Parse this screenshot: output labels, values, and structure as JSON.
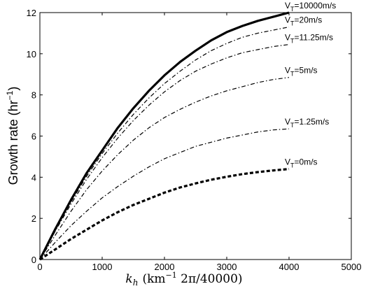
{
  "chart_data": {
    "type": "line",
    "title": "",
    "xlabel_var": "k",
    "xlabel_sub": "h",
    "xlabel_units": "(km",
    "xlabel_exp": "−1",
    "xlabel_rest": " 2π/40000)",
    "ylabel": "Growth rate (hr",
    "ylabel_exp": "−1",
    "ylabel_close": ")",
    "xlim": [
      0,
      5000
    ],
    "ylim": [
      0,
      12
    ],
    "xticks": [
      "0",
      "1000",
      "2000",
      "3000",
      "4000",
      "5000"
    ],
    "yticks": [
      "0",
      "2",
      "4",
      "6",
      "8",
      "10",
      "12"
    ],
    "grid": false,
    "series": [
      {
        "name": "V_T=10000m/s",
        "label_main": "V",
        "label_sub": "T",
        "label_tail": "=10000m/s",
        "style": "solid-thick",
        "x": [
          0,
          250,
          500,
          750,
          1000,
          1250,
          1500,
          1750,
          2000,
          2250,
          2500,
          2750,
          3000,
          3250,
          3500,
          3750,
          4000
        ],
        "y": [
          0,
          1.5,
          2.9,
          4.2,
          5.3,
          6.4,
          7.35,
          8.2,
          8.95,
          9.6,
          10.15,
          10.65,
          11.05,
          11.35,
          11.6,
          11.8,
          12.0
        ]
      },
      {
        "name": "V_T=20m/s",
        "label_main": "V",
        "label_sub": "T",
        "label_tail": "=20m/s",
        "style": "dashdot",
        "x": [
          0,
          250,
          500,
          750,
          1000,
          1250,
          1500,
          1750,
          2000,
          2250,
          2500,
          2750,
          3000,
          3250,
          3500,
          3750,
          4000
        ],
        "y": [
          0,
          1.45,
          2.8,
          4.05,
          5.15,
          6.15,
          7.05,
          7.85,
          8.55,
          9.15,
          9.7,
          10.15,
          10.5,
          10.8,
          11.0,
          11.15,
          11.3
        ]
      },
      {
        "name": "V_T=11.25m/s",
        "label_main": "V",
        "label_sub": "T",
        "label_tail": "=11.25m/s",
        "style": "dashdot",
        "x": [
          0,
          250,
          500,
          750,
          1000,
          1250,
          1500,
          1750,
          2000,
          2250,
          2500,
          2750,
          3000,
          3250,
          3500,
          3750,
          4000
        ],
        "y": [
          0,
          1.4,
          2.7,
          3.9,
          4.95,
          5.9,
          6.75,
          7.5,
          8.15,
          8.7,
          9.15,
          9.5,
          9.8,
          10.05,
          10.2,
          10.35,
          10.45
        ]
      },
      {
        "name": "V_T=5m/s",
        "label_main": "V",
        "label_sub": "T",
        "label_tail": "=5m/s",
        "style": "dashdot",
        "x": [
          0,
          250,
          500,
          750,
          1000,
          1250,
          1500,
          1750,
          2000,
          2250,
          2500,
          2750,
          3000,
          3250,
          3500,
          3750,
          4000
        ],
        "y": [
          0,
          1.2,
          2.35,
          3.4,
          4.3,
          5.1,
          5.8,
          6.4,
          6.9,
          7.3,
          7.65,
          7.95,
          8.2,
          8.4,
          8.6,
          8.75,
          8.85
        ]
      },
      {
        "name": "V_T=1.25m/s",
        "label_main": "V",
        "label_sub": "T",
        "label_tail": "=1.25m/s",
        "style": "dashdot",
        "x": [
          0,
          250,
          500,
          750,
          1000,
          1250,
          1500,
          1750,
          2000,
          2250,
          2500,
          2750,
          3000,
          3250,
          3500,
          3750,
          4000
        ],
        "y": [
          0,
          0.85,
          1.65,
          2.35,
          3.0,
          3.55,
          4.05,
          4.5,
          4.9,
          5.2,
          5.5,
          5.7,
          5.9,
          6.05,
          6.2,
          6.3,
          6.35
        ]
      },
      {
        "name": "V_T=0m/s",
        "label_main": "V",
        "label_sub": "T",
        "label_tail": "=0m/s",
        "style": "dashed-thick",
        "x": [
          0,
          250,
          500,
          750,
          1000,
          1250,
          1500,
          1750,
          2000,
          2250,
          2500,
          2750,
          3000,
          3250,
          3500,
          3750,
          4000
        ],
        "y": [
          0,
          0.5,
          1.0,
          1.45,
          1.9,
          2.3,
          2.65,
          2.95,
          3.25,
          3.5,
          3.7,
          3.88,
          4.02,
          4.15,
          4.25,
          4.33,
          4.4
        ]
      }
    ]
  }
}
